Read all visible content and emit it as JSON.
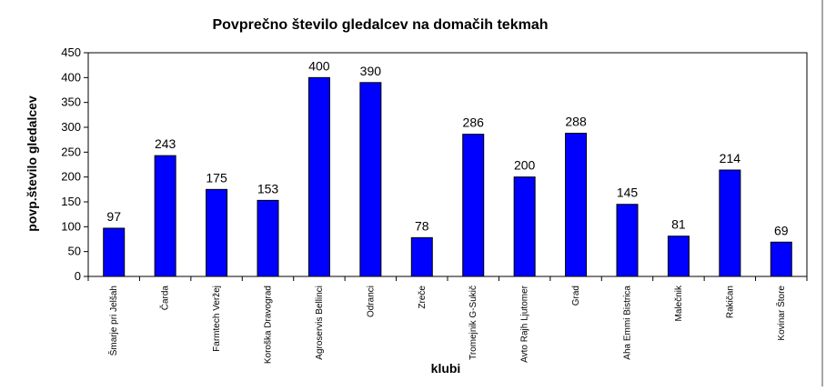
{
  "chart_data": {
    "type": "bar",
    "title": "Povprečno število gledalcev na domačih tekmah",
    "xlabel": "klubi",
    "ylabel": "povp.število gledalcev",
    "ylim": [
      0,
      450
    ],
    "yticks": [
      0,
      50,
      100,
      150,
      200,
      250,
      300,
      350,
      400,
      450
    ],
    "grid": false,
    "legend": "none",
    "bar_color": "#0000ff",
    "categories": [
      "Šmarje pri Jelšah",
      "Čarda",
      "Farmtech Veržej",
      "Koroška Dravograd",
      "Agroservis Bellinci",
      "Odranci",
      "Zreče",
      "Tromejnik G-Sukič",
      "Avto Rajh Ljutomer",
      "Grad",
      "Aha Emmi Bistrica",
      "Malečnik",
      "Rakičan",
      "Kovinar Štore"
    ],
    "values": [
      97,
      243,
      175,
      153,
      400,
      390,
      78,
      286,
      200,
      288,
      145,
      81,
      214,
      69
    ]
  }
}
